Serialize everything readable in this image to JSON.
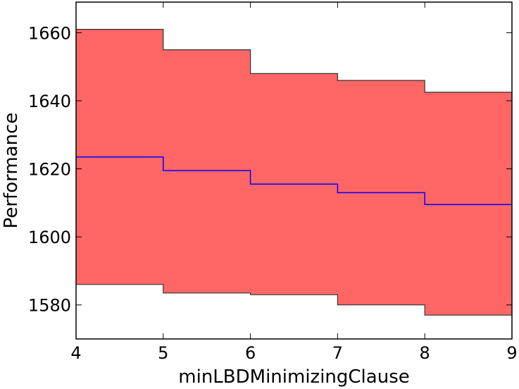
{
  "chart_data": {
    "type": "area",
    "xlabel": "minLBDMinimizingClause",
    "ylabel": "Performance",
    "xlim": [
      4,
      9
    ],
    "ylim": [
      1570,
      1669
    ],
    "xticks": [
      4,
      5,
      6,
      7,
      8,
      9
    ],
    "yticks": [
      1580,
      1600,
      1620,
      1640,
      1660
    ],
    "grid": false,
    "legend": "none",
    "step_x": [
      4,
      5,
      6,
      7,
      8,
      9
    ],
    "mean": [
      1623.5,
      1619.5,
      1615.5,
      1613.0,
      1609.5
    ],
    "upper": [
      1661.0,
      1655.0,
      1648.0,
      1646.0,
      1642.5
    ],
    "lower": [
      1586.0,
      1583.5,
      1583.0,
      1580.0,
      1577.0
    ],
    "colors": {
      "band": "#ff6666",
      "mean_line": "#0000ff",
      "bound_line": "#333333"
    }
  }
}
